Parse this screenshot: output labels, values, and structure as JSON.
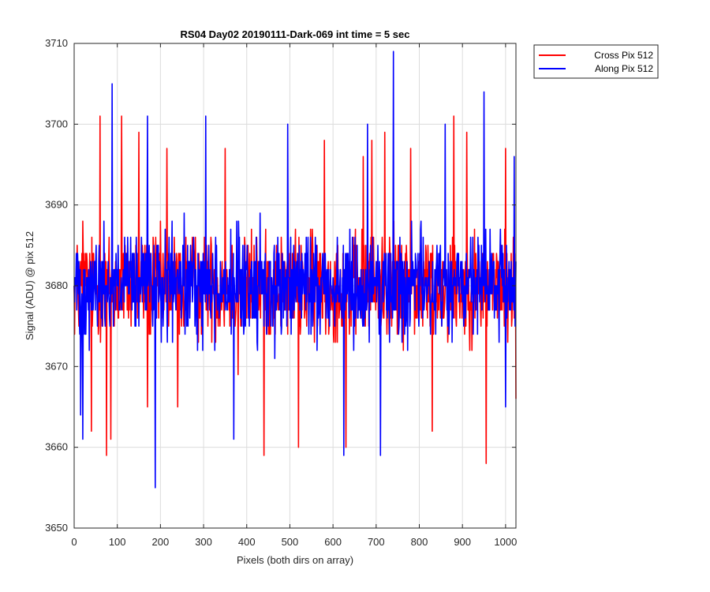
{
  "chart_data": {
    "type": "line",
    "title": "RS04 Day02 20190111-Dark-069 int time = 5 sec",
    "xlabel": "Pixels (both dirs on array)",
    "ylabel": "Signal (ADU) @ pix 512",
    "xlim": [
      0,
      1024
    ],
    "ylim": [
      3650,
      3710
    ],
    "xticks": [
      0,
      100,
      200,
      300,
      400,
      500,
      600,
      700,
      800,
      900,
      1000
    ],
    "yticks": [
      3650,
      3660,
      3670,
      3680,
      3690,
      3700,
      3710
    ],
    "grid": true,
    "legend_position": "outside-top-right",
    "series": [
      {
        "name": "Cross Pix 512",
        "color": "#ff0000",
        "points": [
          [
            0,
            3680
          ],
          [
            20,
            3688
          ],
          [
            40,
            3662
          ],
          [
            60,
            3701
          ],
          [
            75,
            3659
          ],
          [
            85,
            3661
          ],
          [
            110,
            3701
          ],
          [
            150,
            3699
          ],
          [
            170,
            3665
          ],
          [
            215,
            3697
          ],
          [
            240,
            3665
          ],
          [
            350,
            3697
          ],
          [
            380,
            3669
          ],
          [
            440,
            3659
          ],
          [
            520,
            3660
          ],
          [
            580,
            3698
          ],
          [
            630,
            3660
          ],
          [
            670,
            3696
          ],
          [
            690,
            3698
          ],
          [
            720,
            3699
          ],
          [
            780,
            3697
          ],
          [
            830,
            3662
          ],
          [
            880,
            3701
          ],
          [
            910,
            3699
          ],
          [
            955,
            3658
          ],
          [
            1000,
            3697
          ],
          [
            1024,
            3666
          ]
        ],
        "mean": 3680,
        "spread": 6
      },
      {
        "name": "Along Pix 512",
        "color": "#0000ff",
        "points": [
          [
            0,
            3680
          ],
          [
            15,
            3664
          ],
          [
            20,
            3661
          ],
          [
            88,
            3705
          ],
          [
            170,
            3701
          ],
          [
            188,
            3655
          ],
          [
            305,
            3701
          ],
          [
            370,
            3661
          ],
          [
            495,
            3700
          ],
          [
            625,
            3659
          ],
          [
            680,
            3700
          ],
          [
            710,
            3659
          ],
          [
            740,
            3709
          ],
          [
            860,
            3700
          ],
          [
            950,
            3704
          ],
          [
            1000,
            3665
          ],
          [
            1020,
            3696
          ],
          [
            1024,
            3683
          ]
        ],
        "mean": 3680,
        "spread": 6
      }
    ]
  }
}
